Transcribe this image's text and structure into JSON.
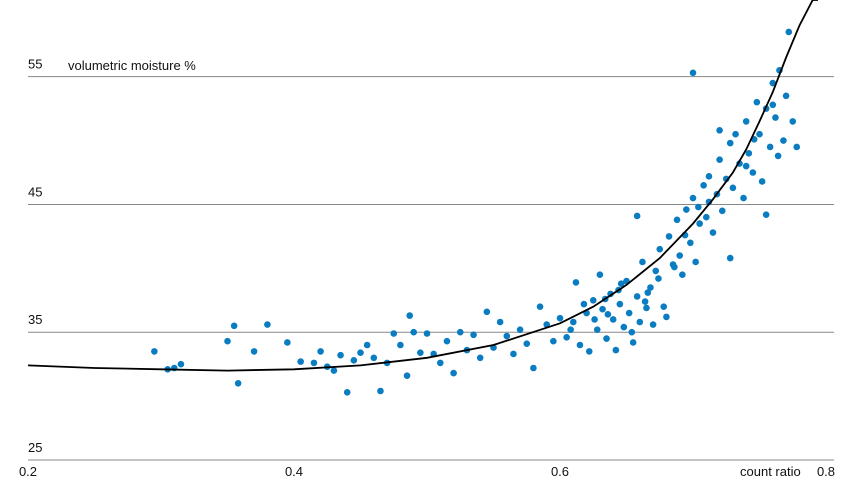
{
  "chart_data": {
    "type": "scatter",
    "x_label": "count ratio",
    "y_label": "volumetric moisture %",
    "xlim": [
      0.2,
      0.8
    ],
    "ylim": [
      25,
      61
    ],
    "xticks": [
      0.2,
      0.4,
      0.6,
      0.8
    ],
    "yticks": [
      25,
      35,
      45,
      55
    ],
    "grid": true,
    "series": [
      {
        "color": "#0a7cc1",
        "x": [
          0.295,
          0.305,
          0.31,
          0.315,
          0.35,
          0.355,
          0.358,
          0.37,
          0.38,
          0.395,
          0.405,
          0.415,
          0.42,
          0.425,
          0.43,
          0.435,
          0.44,
          0.445,
          0.45,
          0.455,
          0.46,
          0.465,
          0.47,
          0.475,
          0.48,
          0.485,
          0.487,
          0.49,
          0.495,
          0.5,
          0.505,
          0.51,
          0.515,
          0.52,
          0.525,
          0.53,
          0.535,
          0.54,
          0.545,
          0.55,
          0.555,
          0.56,
          0.565,
          0.57,
          0.575,
          0.58,
          0.585,
          0.59,
          0.595,
          0.6,
          0.605,
          0.61,
          0.612,
          0.615,
          0.62,
          0.622,
          0.625,
          0.628,
          0.63,
          0.632,
          0.635,
          0.638,
          0.64,
          0.642,
          0.645,
          0.648,
          0.65,
          0.652,
          0.655,
          0.658,
          0.66,
          0.662,
          0.665,
          0.668,
          0.67,
          0.672,
          0.675,
          0.678,
          0.68,
          0.682,
          0.685,
          0.688,
          0.69,
          0.692,
          0.695,
          0.698,
          0.7,
          0.702,
          0.705,
          0.708,
          0.71,
          0.712,
          0.715,
          0.718,
          0.72,
          0.722,
          0.725,
          0.728,
          0.73,
          0.732,
          0.735,
          0.738,
          0.74,
          0.742,
          0.745,
          0.748,
          0.75,
          0.752,
          0.755,
          0.758,
          0.76,
          0.762,
          0.765,
          0.768,
          0.77,
          0.772,
          0.775,
          0.778,
          0.7,
          0.658,
          0.728,
          0.755,
          0.72,
          0.618,
          0.626,
          0.634,
          0.644,
          0.654,
          0.664,
          0.674,
          0.608,
          0.636,
          0.646,
          0.666,
          0.74,
          0.746,
          0.76,
          0.764,
          0.712,
          0.704,
          0.694,
          0.686
        ],
        "values": [
          33.5,
          32.1,
          32.2,
          32.5,
          34.3,
          35.5,
          31.0,
          33.5,
          35.6,
          34.2,
          32.7,
          32.6,
          33.5,
          32.3,
          32.0,
          33.2,
          30.3,
          32.8,
          33.4,
          34.0,
          33.0,
          30.4,
          32.6,
          34.9,
          34.0,
          31.6,
          36.3,
          35.0,
          33.4,
          34.9,
          33.3,
          32.6,
          34.3,
          31.8,
          35.0,
          33.6,
          34.8,
          33.0,
          36.6,
          33.8,
          35.8,
          34.7,
          33.3,
          35.2,
          34.1,
          32.2,
          37.0,
          35.6,
          34.3,
          36.1,
          34.6,
          35.8,
          38.9,
          34.0,
          36.5,
          33.5,
          37.5,
          35.2,
          39.5,
          36.8,
          34.5,
          38.0,
          36.0,
          33.6,
          37.2,
          35.4,
          39.0,
          36.5,
          34.2,
          37.8,
          35.8,
          40.5,
          36.9,
          38.5,
          35.6,
          39.8,
          41.5,
          37.0,
          36.2,
          42.5,
          40.3,
          43.8,
          41.0,
          39.5,
          44.6,
          42.0,
          45.5,
          40.5,
          43.5,
          46.5,
          44.0,
          47.2,
          42.8,
          45.8,
          48.5,
          44.5,
          47.0,
          49.8,
          46.3,
          50.5,
          48.2,
          45.5,
          51.5,
          49.0,
          47.5,
          53.0,
          50.5,
          46.8,
          52.5,
          49.5,
          54.5,
          51.8,
          55.5,
          50.0,
          53.5,
          58.5,
          51.5,
          49.5,
          55.3,
          44.1,
          40.8,
          44.2,
          50.8,
          37.2,
          36.0,
          37.6,
          38.3,
          35.0,
          37.4,
          39.2,
          35.2,
          36.4,
          38.8,
          38.1,
          48.0,
          50.1,
          52.8,
          48.8,
          45.2,
          44.8,
          42.6,
          40.1
        ]
      }
    ],
    "trend": {
      "color": "#000000",
      "x": [
        0.2,
        0.25,
        0.3,
        0.35,
        0.4,
        0.45,
        0.5,
        0.55,
        0.6,
        0.625,
        0.65,
        0.675,
        0.7,
        0.715,
        0.73,
        0.74,
        0.75,
        0.76,
        0.77,
        0.78,
        0.79,
        0.794
      ],
      "values": [
        32.4,
        32.2,
        32.1,
        32.0,
        32.1,
        32.4,
        33.0,
        34.0,
        35.7,
        37.0,
        38.7,
        40.8,
        43.5,
        45.4,
        47.5,
        49.3,
        51.5,
        53.8,
        56.5,
        59.0,
        61.0,
        61.0
      ]
    }
  }
}
